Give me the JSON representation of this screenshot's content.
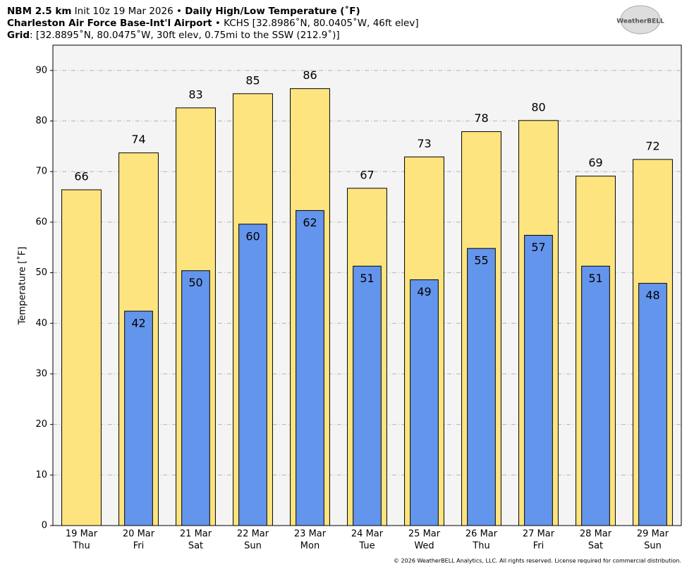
{
  "chart_data": {
    "type": "bar",
    "header": [
      [
        {
          "text": "NBM 2.5 km",
          "bold": true
        },
        {
          "text": " Init 10z 19 Mar 2026 • ",
          "bold": false
        },
        {
          "text": "Daily High/Low Temperature (˚F)",
          "bold": true
        }
      ],
      [
        {
          "text": "Charleston Air Force Base-Int'l Airport",
          "bold": true
        },
        {
          "text": " • KCHS [32.8986˚N, 80.0405˚W, 46ft elev]",
          "bold": false
        }
      ],
      [
        {
          "text": "Grid",
          "bold": true
        },
        {
          "text": ": [32.8895˚N, 80.0475˚W, 30ft elev, 0.75mi to the SSW (212.9˚)]",
          "bold": false
        }
      ]
    ],
    "logo": "WeatherBELL",
    "footer": "© 2026 WeatherBELL Analytics, LLC. All rights reserved. License required for commercial distribution.",
    "ylabel": "Temperature [˚F]",
    "categories": [
      "19 Mar",
      "20 Mar",
      "21 Mar",
      "22 Mar",
      "23 Mar",
      "24 Mar",
      "25 Mar",
      "26 Mar",
      "27 Mar",
      "28 Mar",
      "29 Mar"
    ],
    "weekdays": [
      "Thu",
      "Fri",
      "Sat",
      "Sun",
      "Mon",
      "Tue",
      "Wed",
      "Thu",
      "Fri",
      "Sat",
      "Sun"
    ],
    "series": [
      {
        "name": "High",
        "color": "#fee47f",
        "values": [
          66.4,
          73.7,
          82.6,
          85.4,
          86.4,
          66.7,
          72.9,
          77.9,
          80.1,
          69.1,
          72.4
        ],
        "value_labels": [
          "66",
          "74",
          "83",
          "85",
          "86",
          "67",
          "73",
          "78",
          "80",
          "69",
          "72"
        ]
      },
      {
        "name": "Low",
        "color": "#6495ed",
        "values": [
          null,
          42.4,
          50.4,
          59.6,
          62.3,
          51.3,
          48.6,
          54.8,
          57.4,
          51.3,
          47.9
        ],
        "value_labels": [
          null,
          "42",
          "50",
          "60",
          "62",
          "51",
          "49",
          "55",
          "57",
          "51",
          "48"
        ]
      }
    ],
    "ylim": [
      0,
      95
    ],
    "yticks": [
      0,
      10,
      20,
      30,
      40,
      50,
      60,
      70,
      80,
      90
    ],
    "grid": true
  }
}
